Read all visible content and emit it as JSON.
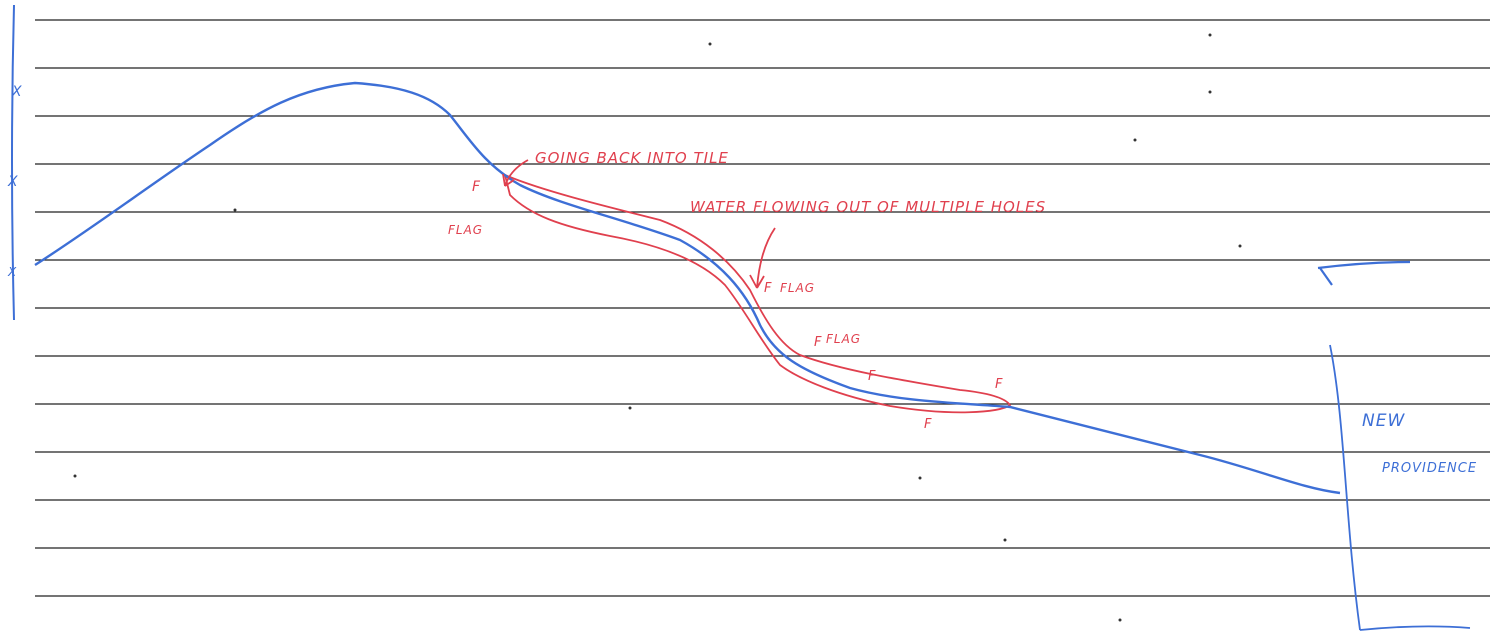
{
  "annotations": [
    "GOING BACK INTO TILE",
    "WATER FLOWING OUT OF MULTIPLE HOLES"
  ],
  "flags": [
    {
      "mark": "F",
      "label": "FLAG"
    },
    {
      "mark": "F",
      "label": "FLAG"
    },
    {
      "mark": "F",
      "label": "FLAG"
    },
    {
      "mark": "F"
    },
    {
      "mark": "F"
    },
    {
      "mark": "F"
    }
  ],
  "left_marks": [
    "X",
    "X",
    "X"
  ],
  "place": [
    "NEW",
    "PROVIDENCE"
  ]
}
